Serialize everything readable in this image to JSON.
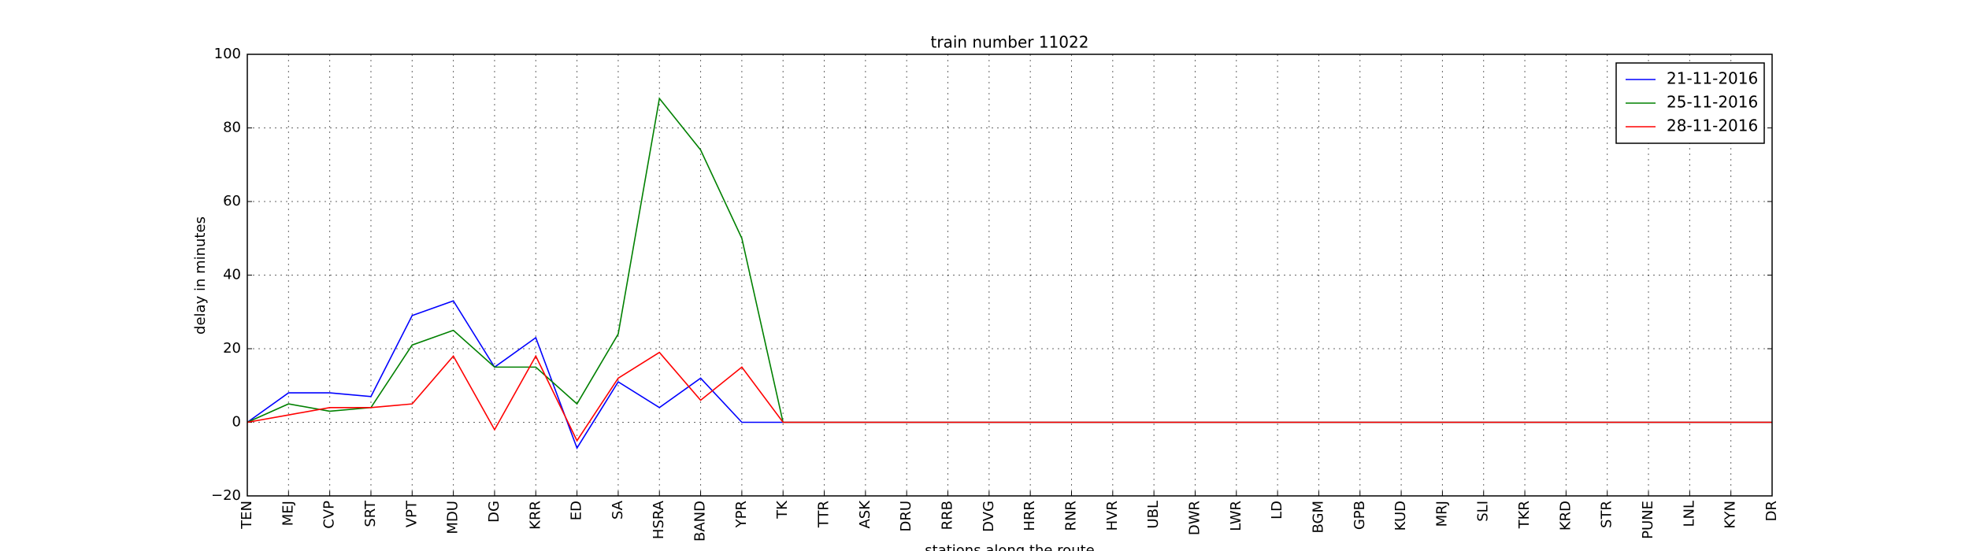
{
  "chart_data": {
    "type": "line",
    "title": "train number 11022",
    "xlabel": "stations along the route",
    "ylabel": "delay in minutes",
    "categories": [
      "TEN",
      "MEJ",
      "CVP",
      "SRT",
      "VPT",
      "MDU",
      "DG",
      "KRR",
      "ED",
      "SA",
      "HSRA",
      "BAND",
      "YPR",
      "TK",
      "TTR",
      "ASK",
      "DRU",
      "RRB",
      "DVG",
      "HRR",
      "RNR",
      "HVR",
      "UBL",
      "DWR",
      "LWR",
      "LD",
      "BGM",
      "GPB",
      "KUD",
      "MRJ",
      "SLI",
      "TKR",
      "KRD",
      "STR",
      "PUNE",
      "LNL",
      "KYN",
      "DR"
    ],
    "series": [
      {
        "name": "21-11-2016",
        "color": "#0000ff",
        "values": [
          0,
          8,
          8,
          7,
          29,
          33,
          15,
          23,
          -7,
          11,
          4,
          12,
          0,
          0,
          0,
          0,
          0,
          0,
          0,
          0,
          0,
          0,
          0,
          0,
          0,
          0,
          0,
          0,
          0,
          0,
          0,
          0,
          0,
          0,
          0,
          0,
          0,
          0
        ]
      },
      {
        "name": "25-11-2016",
        "color": "#008000",
        "values": [
          0,
          5,
          3,
          4,
          21,
          25,
          15,
          15,
          5,
          24,
          88,
          74,
          50,
          0,
          0,
          0,
          0,
          0,
          0,
          0,
          0,
          0,
          0,
          0,
          0,
          0,
          0,
          0,
          0,
          0,
          0,
          0,
          0,
          0,
          0,
          0,
          0,
          0
        ]
      },
      {
        "name": "28-11-2016",
        "color": "#ff0000",
        "values": [
          0,
          2,
          4,
          4,
          5,
          18,
          -2,
          18,
          -5,
          12,
          19,
          6,
          15,
          0,
          0,
          0,
          0,
          0,
          0,
          0,
          0,
          0,
          0,
          0,
          0,
          0,
          0,
          0,
          0,
          0,
          0,
          0,
          0,
          0,
          0,
          0,
          0,
          0
        ]
      }
    ],
    "ylim": [
      -20,
      100
    ],
    "yticks": [
      {
        "value": -20,
        "label": "−20"
      },
      0,
      20,
      40,
      60,
      80,
      100
    ],
    "grid": true,
    "legend": "upper right"
  }
}
